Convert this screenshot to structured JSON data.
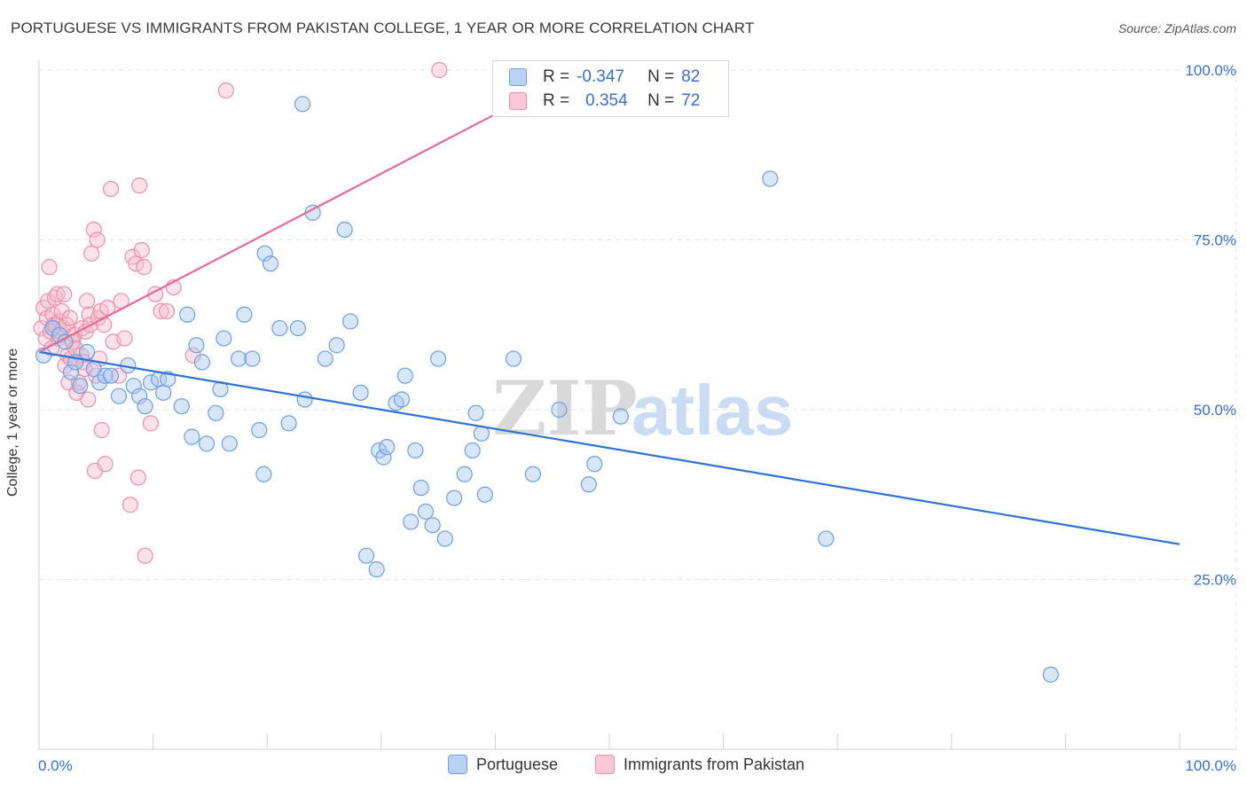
{
  "title": "PORTUGUESE VS IMMIGRANTS FROM PAKISTAN COLLEGE, 1 YEAR OR MORE CORRELATION CHART",
  "source": "Source: ZipAtlas.com",
  "watermark": {
    "zip": "ZIP",
    "atlas": "atlas"
  },
  "legend": {
    "series1": {
      "r_label": "R =",
      "r_value": "-0.347",
      "n_label": "N =",
      "n_value": "82"
    },
    "series2": {
      "r_label": "R =",
      "r_value": "0.354",
      "n_label": "N =",
      "n_value": "72"
    }
  },
  "colors": {
    "blue_fill": "#a9c8f0",
    "blue_stroke": "#6e9ede",
    "blue_line": "#2e72d2",
    "pink_fill": "#f6bccd",
    "pink_stroke": "#ec8fad",
    "pink_line": "#e56a93"
  },
  "chart_data": {
    "type": "scatter",
    "title": "PORTUGUESE VS IMMIGRANTS FROM PAKISTAN COLLEGE, 1 YEAR OR MORE CORRELATION CHART",
    "xlabel": "",
    "ylabel": "College, 1 year or more",
    "xlim": [
      0,
      100
    ],
    "ylim": [
      0,
      100
    ],
    "x_tick_labels": [
      "0.0%",
      "100.0%"
    ],
    "y_ticks": [
      25,
      50,
      75,
      100
    ],
    "y_tick_labels": [
      "25.0%",
      "50.0%",
      "75.0%",
      "100.0%"
    ],
    "grid": true,
    "legend_position": "bottom",
    "series": [
      {
        "name": "Portuguese",
        "r": -0.347,
        "n": 82,
        "trend": [
          [
            0,
            58.5
          ],
          [
            100,
            30.2
          ]
        ],
        "points": [
          [
            0.4,
            58
          ],
          [
            1.2,
            62
          ],
          [
            1.8,
            61
          ],
          [
            2.3,
            60
          ],
          [
            2.8,
            55.5
          ],
          [
            3.2,
            57
          ],
          [
            3.6,
            53.5
          ],
          [
            4.2,
            58.5
          ],
          [
            4.8,
            56
          ],
          [
            5.3,
            54
          ],
          [
            5.8,
            55
          ],
          [
            6.3,
            55
          ],
          [
            7.0,
            52
          ],
          [
            7.8,
            56.5
          ],
          [
            8.3,
            53.5
          ],
          [
            8.8,
            52
          ],
          [
            9.3,
            50.5
          ],
          [
            9.8,
            54
          ],
          [
            10.5,
            54.5
          ],
          [
            10.9,
            52.5
          ],
          [
            11.3,
            54.5
          ],
          [
            12.5,
            50.5
          ],
          [
            13.0,
            64
          ],
          [
            13.4,
            46
          ],
          [
            13.8,
            59.5
          ],
          [
            14.3,
            57
          ],
          [
            14.7,
            45
          ],
          [
            15.5,
            49.5
          ],
          [
            15.9,
            53
          ],
          [
            16.2,
            60.5
          ],
          [
            16.7,
            45
          ],
          [
            17.5,
            57.5
          ],
          [
            18.0,
            64
          ],
          [
            18.7,
            57.5
          ],
          [
            19.3,
            47
          ],
          [
            19.7,
            40.5
          ],
          [
            19.8,
            73
          ],
          [
            20.3,
            71.5
          ],
          [
            21.1,
            62
          ],
          [
            21.9,
            48
          ],
          [
            22.7,
            62
          ],
          [
            23.1,
            95
          ],
          [
            23.3,
            51.5
          ],
          [
            24.0,
            79
          ],
          [
            25.1,
            57.5
          ],
          [
            26.1,
            59.5
          ],
          [
            26.8,
            76.5
          ],
          [
            27.3,
            63
          ],
          [
            28.2,
            52.5
          ],
          [
            28.7,
            28.5
          ],
          [
            29.6,
            26.5
          ],
          [
            29.8,
            44
          ],
          [
            30.2,
            43
          ],
          [
            30.5,
            44.5
          ],
          [
            31.3,
            51
          ],
          [
            31.8,
            51.5
          ],
          [
            32.1,
            55
          ],
          [
            32.6,
            33.5
          ],
          [
            33.0,
            44
          ],
          [
            33.5,
            38.5
          ],
          [
            33.9,
            35
          ],
          [
            34.5,
            33
          ],
          [
            35.0,
            57.5
          ],
          [
            35.6,
            31
          ],
          [
            36.4,
            37
          ],
          [
            37.3,
            40.5
          ],
          [
            38.0,
            44
          ],
          [
            38.3,
            49.5
          ],
          [
            38.8,
            46.5
          ],
          [
            39.1,
            37.5
          ],
          [
            41.6,
            57.5
          ],
          [
            43.3,
            40.5
          ],
          [
            45.6,
            50
          ],
          [
            48.2,
            39
          ],
          [
            48.7,
            42
          ],
          [
            51.0,
            49
          ],
          [
            64.1,
            84
          ],
          [
            69.0,
            31
          ],
          [
            88.7,
            11
          ]
        ]
      },
      {
        "name": "Immigrants from Pakistan",
        "r": 0.354,
        "n": 72,
        "trend": [
          [
            0,
            58.5
          ],
          [
            40,
            93.5
          ]
        ],
        "points": [
          [
            0.2,
            62
          ],
          [
            0.4,
            65
          ],
          [
            0.6,
            60.5
          ],
          [
            0.7,
            63.5
          ],
          [
            0.8,
            66
          ],
          [
            0.9,
            71
          ],
          [
            1.0,
            61.5
          ],
          [
            1.1,
            59
          ],
          [
            1.2,
            64
          ],
          [
            1.3,
            62.5
          ],
          [
            1.4,
            66.5
          ],
          [
            1.5,
            62.5
          ],
          [
            1.6,
            67
          ],
          [
            1.7,
            60.5
          ],
          [
            1.8,
            63
          ],
          [
            1.9,
            61.5
          ],
          [
            2.0,
            64.5
          ],
          [
            2.1,
            62
          ],
          [
            2.2,
            67
          ],
          [
            2.3,
            56.5
          ],
          [
            2.4,
            62.5
          ],
          [
            2.5,
            58
          ],
          [
            2.6,
            54
          ],
          [
            2.7,
            63.5
          ],
          [
            2.8,
            57.5
          ],
          [
            2.9,
            60
          ],
          [
            3.0,
            60
          ],
          [
            3.1,
            61
          ],
          [
            3.2,
            59
          ],
          [
            3.3,
            52.5
          ],
          [
            3.5,
            54
          ],
          [
            3.7,
            58
          ],
          [
            3.8,
            62
          ],
          [
            3.9,
            57
          ],
          [
            4.0,
            56
          ],
          [
            4.1,
            61.5
          ],
          [
            4.2,
            66
          ],
          [
            4.3,
            51.5
          ],
          [
            4.4,
            64
          ],
          [
            4.5,
            62.5
          ],
          [
            4.6,
            73
          ],
          [
            4.8,
            76.5
          ],
          [
            4.9,
            41
          ],
          [
            5.0,
            55
          ],
          [
            5.1,
            75
          ],
          [
            5.2,
            63.5
          ],
          [
            5.3,
            57.5
          ],
          [
            5.4,
            64.5
          ],
          [
            5.5,
            47
          ],
          [
            5.7,
            62.5
          ],
          [
            5.8,
            42
          ],
          [
            6.0,
            65
          ],
          [
            6.3,
            82.5
          ],
          [
            6.5,
            60
          ],
          [
            7.0,
            55
          ],
          [
            7.2,
            66
          ],
          [
            7.5,
            60.5
          ],
          [
            8.0,
            36
          ],
          [
            8.2,
            72.5
          ],
          [
            8.5,
            71.5
          ],
          [
            8.7,
            40
          ],
          [
            8.8,
            83
          ],
          [
            9.0,
            73.5
          ],
          [
            9.2,
            71
          ],
          [
            9.3,
            28.5
          ],
          [
            9.8,
            48
          ],
          [
            10.2,
            67
          ],
          [
            10.7,
            64.5
          ],
          [
            11.2,
            64.5
          ],
          [
            11.8,
            68
          ],
          [
            13.5,
            58
          ],
          [
            16.4,
            97
          ],
          [
            35.1,
            100
          ]
        ]
      }
    ]
  }
}
